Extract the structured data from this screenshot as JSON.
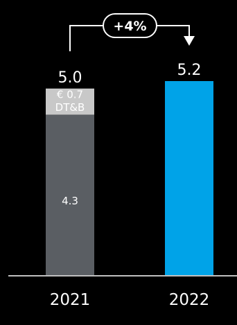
{
  "chart_data": {
    "type": "bar",
    "title": "",
    "xlabel": "",
    "ylabel": "",
    "categories": [
      "2021",
      "2022"
    ],
    "totals": [
      5.0,
      5.2
    ],
    "total_labels": [
      "5.0",
      "5.2"
    ],
    "ylim": [
      0,
      5.2
    ],
    "grid": false,
    "legend": "none",
    "series": [
      {
        "name": "",
        "values": [
          4.3,
          5.2
        ],
        "labels": [
          "4.3",
          ""
        ],
        "colors": [
          "#5a5e63",
          "#00a3e8"
        ]
      },
      {
        "name": "DT&B",
        "values": [
          0.7,
          null
        ],
        "labels": [
          "€ 0.7",
          ""
        ],
        "colors": [
          "#c8c8c8",
          null
        ]
      }
    ],
    "annotation": {
      "type": "growth-arrow",
      "from": "2021",
      "to": "2022",
      "label": "+4%"
    }
  }
}
